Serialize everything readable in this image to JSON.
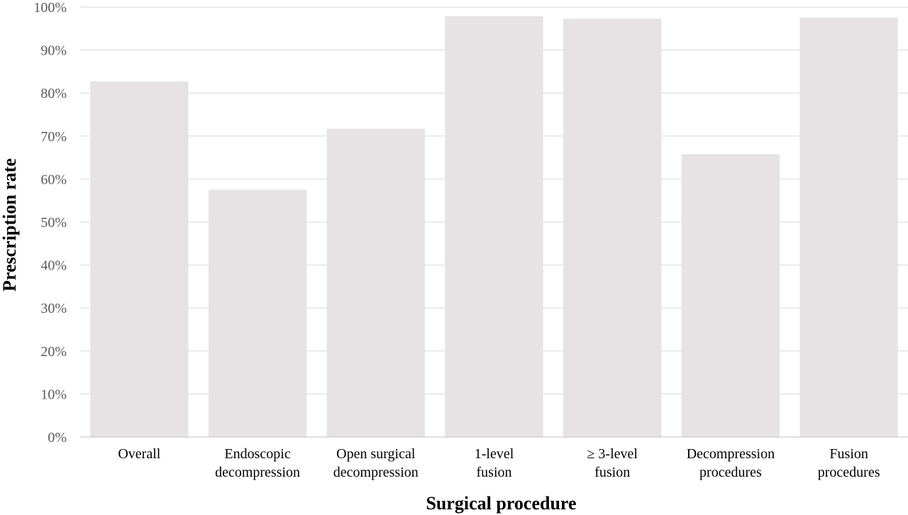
{
  "chart_data": {
    "type": "bar",
    "categories": [
      [
        "Overall"
      ],
      [
        "Endoscopic",
        "decompression"
      ],
      [
        "Open surgical",
        "decompression"
      ],
      [
        "1-level",
        "fusion"
      ],
      [
        "≥ 3-level",
        "fusion"
      ],
      [
        "Decompression",
        "procedures"
      ],
      [
        "Fusion",
        "procedures"
      ]
    ],
    "values": [
      82.7,
      57.5,
      71.7,
      97.9,
      97.3,
      65.8,
      97.6
    ],
    "xlabel": "Surgical procedure",
    "ylabel": "Prescription rate",
    "ylim": [
      0,
      100
    ],
    "yticks": [
      "0%",
      "10%",
      "20%",
      "30%",
      "40%",
      "50%",
      "60%",
      "70%",
      "80%",
      "90%",
      "100%"
    ],
    "grid": true,
    "colors": {
      "bar": "#e7e3e4",
      "grid": "#d9d9d9",
      "axis": "#bfbfbf"
    }
  }
}
